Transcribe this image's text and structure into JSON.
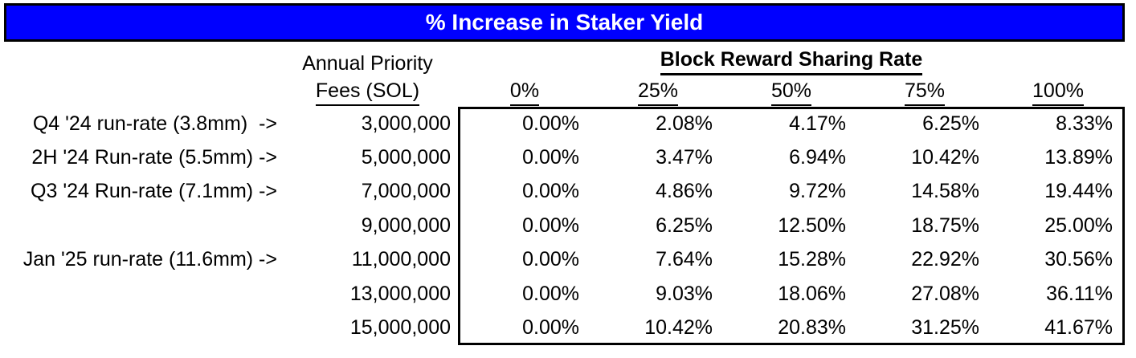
{
  "title": "% Increase in Staker Yield",
  "colors": {
    "title_bar_bg": "#0000FF",
    "title_text": "#FFFFFF",
    "border": "#000000",
    "background": "#FFFFFF",
    "body_text": "#000000"
  },
  "table": {
    "fees_header_line1": "Annual Priority",
    "fees_header_line2": "Fees (SOL)",
    "group_header": "Block Reward Sharing Rate",
    "rate_headers": [
      "0%",
      "25%",
      "50%",
      "75%",
      "100%"
    ],
    "rows": [
      {
        "label": "Q4 '24 run-rate (3.8mm)  ->",
        "fees": "3,000,000",
        "values": [
          "0.00%",
          "2.08%",
          "4.17%",
          "6.25%",
          "8.33%"
        ]
      },
      {
        "label": "2H '24 Run-rate (5.5mm) ->",
        "fees": "5,000,000",
        "values": [
          "0.00%",
          "3.47%",
          "6.94%",
          "10.42%",
          "13.89%"
        ]
      },
      {
        "label": "Q3 '24 Run-rate (7.1mm) ->",
        "fees": "7,000,000",
        "values": [
          "0.00%",
          "4.86%",
          "9.72%",
          "14.58%",
          "19.44%"
        ]
      },
      {
        "label": "",
        "fees": "9,000,000",
        "values": [
          "0.00%",
          "6.25%",
          "12.50%",
          "18.75%",
          "25.00%"
        ]
      },
      {
        "label": "Jan '25 run-rate (11.6mm) ->",
        "fees": "11,000,000",
        "values": [
          "0.00%",
          "7.64%",
          "15.28%",
          "22.92%",
          "30.56%"
        ]
      },
      {
        "label": "",
        "fees": "13,000,000",
        "values": [
          "0.00%",
          "9.03%",
          "18.06%",
          "27.08%",
          "36.11%"
        ]
      },
      {
        "label": "",
        "fees": "15,000,000",
        "values": [
          "0.00%",
          "10.42%",
          "20.83%",
          "31.25%",
          "41.67%"
        ]
      }
    ]
  },
  "chart_data": {
    "type": "table",
    "title": "% Increase in Staker Yield",
    "row_axis_label": "Annual Priority Fees (SOL)",
    "column_group_label": "Block Reward Sharing Rate",
    "columns_block_reward_sharing_rate_pct": [
      0,
      25,
      50,
      75,
      100
    ],
    "rows": [
      {
        "annotation": "Q4 '24 run-rate (3.8mm)",
        "annual_priority_fees_sol": 3000000,
        "staker_yield_increase_pct": [
          0.0,
          2.08,
          4.17,
          6.25,
          8.33
        ]
      },
      {
        "annotation": "2H '24 Run-rate (5.5mm)",
        "annual_priority_fees_sol": 5000000,
        "staker_yield_increase_pct": [
          0.0,
          3.47,
          6.94,
          10.42,
          13.89
        ]
      },
      {
        "annotation": "Q3 '24 Run-rate (7.1mm)",
        "annual_priority_fees_sol": 7000000,
        "staker_yield_increase_pct": [
          0.0,
          4.86,
          9.72,
          14.58,
          19.44
        ]
      },
      {
        "annotation": "",
        "annual_priority_fees_sol": 9000000,
        "staker_yield_increase_pct": [
          0.0,
          6.25,
          12.5,
          18.75,
          25.0
        ]
      },
      {
        "annotation": "Jan '25 run-rate (11.6mm)",
        "annual_priority_fees_sol": 11000000,
        "staker_yield_increase_pct": [
          0.0,
          7.64,
          15.28,
          22.92,
          30.56
        ]
      },
      {
        "annotation": "",
        "annual_priority_fees_sol": 13000000,
        "staker_yield_increase_pct": [
          0.0,
          9.03,
          18.06,
          27.08,
          36.11
        ]
      },
      {
        "annotation": "",
        "annual_priority_fees_sol": 15000000,
        "staker_yield_increase_pct": [
          0.0,
          10.42,
          20.83,
          31.25,
          41.67
        ]
      }
    ]
  }
}
